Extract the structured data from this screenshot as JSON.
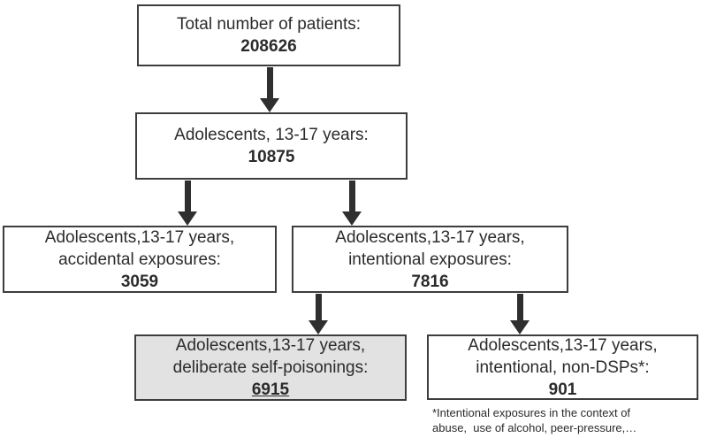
{
  "diagram": {
    "type": "flowchart",
    "boxes": {
      "total": {
        "line1": "Total number of patients:",
        "value": "208626"
      },
      "adolescents": {
        "line1": "Adolescents, 13-17 years:",
        "value": "10875"
      },
      "accidental": {
        "line1": "Adolescents,13-17 years,",
        "line2": "accidental exposures:",
        "value": "3059"
      },
      "intentional": {
        "line1": "Adolescents,13-17 years,",
        "line2": "intentional exposures:",
        "value": "7816"
      },
      "dsp": {
        "line1": "Adolescents,13-17 years,",
        "line2": "deliberate self-poisonings:",
        "value": "6915"
      },
      "non_dsp": {
        "line1": "Adolescents,13-17 years,",
        "line2": "intentional, non-DSPs*:",
        "value": "901"
      }
    },
    "footnote": {
      "line1": "*Intentional exposures in the context of",
      "line2": "abuse,  use of alcohol, peer-pressure,…"
    },
    "colors": {
      "border": "#3d3d3d",
      "text": "#2b2b2b",
      "arrow": "#2f2f2f",
      "highlight_fill": "#e2e2e2",
      "background": "#ffffff"
    }
  }
}
